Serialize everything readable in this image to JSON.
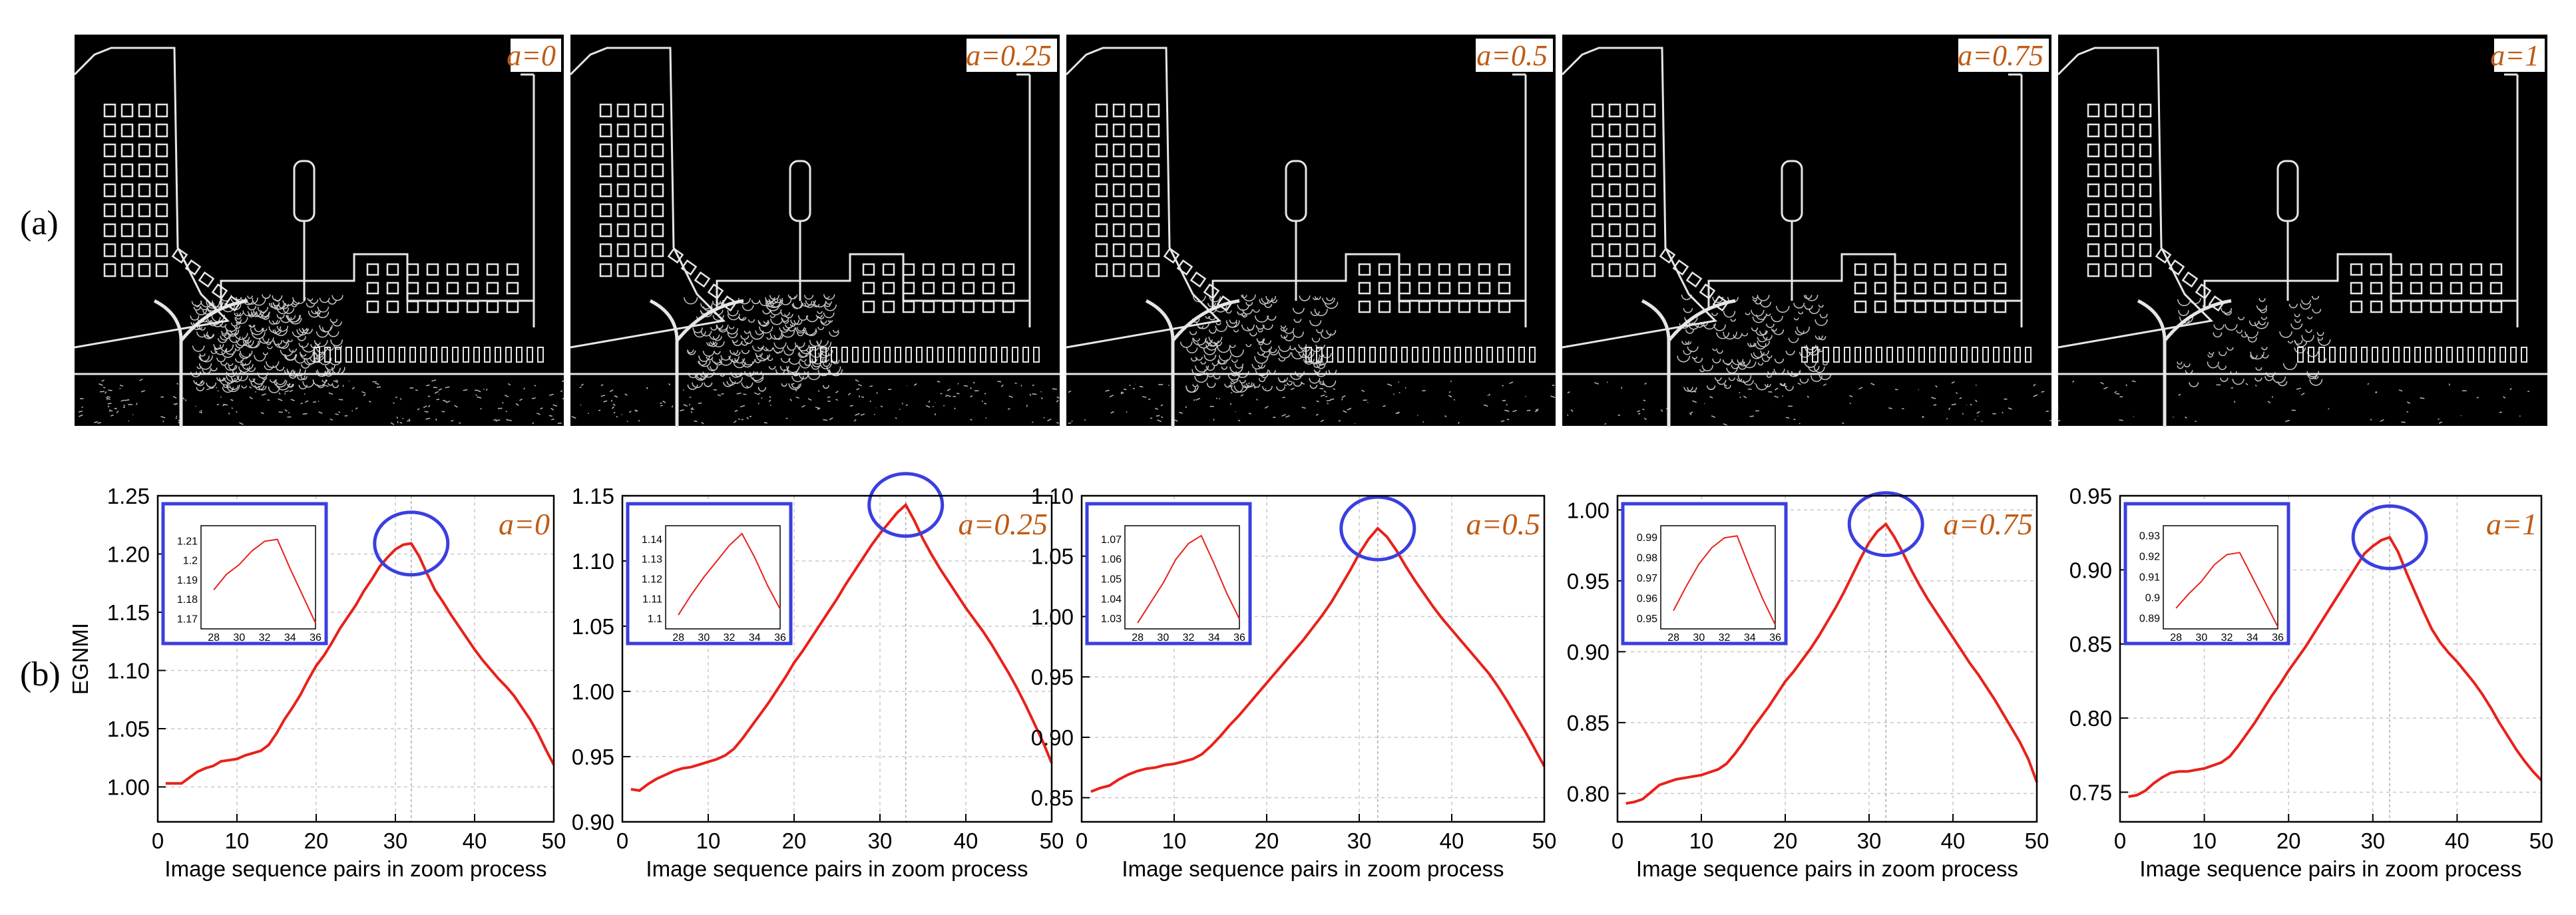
{
  "row_labels": {
    "a": "(a)",
    "b": "(b)"
  },
  "colors": {
    "curve": "#e8211b",
    "highlight": "#3a3fe0",
    "param_label": "#c05a12",
    "grid": "#c8c8c8",
    "edge_line": "#e6e6e6"
  },
  "images": [
    {
      "label": "a=0",
      "icon": "edge-map-image"
    },
    {
      "label": "a=0.25",
      "icon": "edge-map-image"
    },
    {
      "label": "a=0.5",
      "icon": "edge-map-image"
    },
    {
      "label": "a=0.75",
      "icon": "edge-map-image"
    },
    {
      "label": "a=1",
      "icon": "edge-map-image"
    }
  ],
  "chart_data": [
    {
      "type": "line",
      "param_label": "a=0",
      "xlabel": "Image sequence pairs in zoom process",
      "ylabel": "EGNMI",
      "xlim": [
        0,
        50
      ],
      "ylim": [
        0.97,
        1.25
      ],
      "x_ticks": [
        0,
        10,
        20,
        30,
        40,
        50
      ],
      "y_ticks": [
        1.0,
        1.05,
        1.1,
        1.15,
        1.2,
        1.25
      ],
      "y_tick_decimals": 2,
      "grid": true,
      "peak_x": 32,
      "series": [
        {
          "x": [
            1,
            2,
            3,
            4,
            5,
            6,
            7,
            8,
            9,
            10,
            11,
            12,
            13,
            14,
            15,
            16,
            17,
            18,
            19,
            20,
            21,
            22,
            23,
            24,
            25,
            26,
            27,
            28,
            29,
            30,
            31,
            32,
            33,
            34,
            35,
            36,
            37,
            38,
            39,
            40,
            41,
            42,
            43,
            44,
            45,
            46,
            47,
            48,
            49,
            50
          ],
          "values": [
            1.003,
            1.003,
            1.003,
            1.008,
            1.013,
            1.016,
            1.018,
            1.022,
            1.023,
            1.024,
            1.027,
            1.029,
            1.031,
            1.036,
            1.046,
            1.058,
            1.068,
            1.079,
            1.092,
            1.104,
            1.113,
            1.124,
            1.136,
            1.146,
            1.156,
            1.168,
            1.178,
            1.189,
            1.197,
            1.204,
            1.208,
            1.209,
            1.198,
            1.183,
            1.169,
            1.159,
            1.148,
            1.138,
            1.128,
            1.118,
            1.109,
            1.101,
            1.093,
            1.086,
            1.078,
            1.068,
            1.058,
            1.046,
            1.032,
            1.019
          ]
        }
      ],
      "inset": {
        "xlim": [
          27,
          36
        ],
        "ylim": [
          1.165,
          1.218
        ],
        "x_ticks": [
          28,
          30,
          32,
          34,
          36
        ],
        "y_ticks": [
          1.17,
          1.18,
          1.19,
          1.2,
          1.21
        ],
        "y_tick_labels": [
          "1.17",
          "1.18",
          "1.19",
          "1.2",
          "1.21"
        ],
        "x": [
          28,
          29,
          30,
          31,
          32,
          33,
          34,
          35,
          36
        ],
        "values": [
          1.185,
          1.193,
          1.198,
          1.205,
          1.21,
          1.211,
          1.196,
          1.182,
          1.168
        ]
      }
    },
    {
      "type": "line",
      "param_label": "a=0.25",
      "xlabel": "Image sequence pairs in zoom process",
      "ylabel": "",
      "xlim": [
        0,
        50
      ],
      "ylim": [
        0.9,
        1.15
      ],
      "x_ticks": [
        0,
        10,
        20,
        30,
        40,
        50
      ],
      "y_ticks": [
        0.9,
        0.95,
        1.0,
        1.05,
        1.1,
        1.15
      ],
      "y_tick_decimals": 2,
      "grid": true,
      "peak_x": 33,
      "series": [
        {
          "x": [
            1,
            2,
            3,
            4,
            5,
            6,
            7,
            8,
            9,
            10,
            11,
            12,
            13,
            14,
            15,
            16,
            17,
            18,
            19,
            20,
            21,
            22,
            23,
            24,
            25,
            26,
            27,
            28,
            29,
            30,
            31,
            32,
            33,
            34,
            35,
            36,
            37,
            38,
            39,
            40,
            41,
            42,
            43,
            44,
            45,
            46,
            47,
            48,
            49,
            50
          ],
          "values": [
            0.925,
            0.924,
            0.929,
            0.933,
            0.936,
            0.939,
            0.941,
            0.942,
            0.944,
            0.946,
            0.948,
            0.951,
            0.956,
            0.964,
            0.973,
            0.982,
            0.991,
            1.001,
            1.011,
            1.022,
            1.031,
            1.041,
            1.051,
            1.061,
            1.071,
            1.082,
            1.092,
            1.102,
            1.112,
            1.121,
            1.129,
            1.137,
            1.143,
            1.131,
            1.117,
            1.105,
            1.094,
            1.084,
            1.074,
            1.064,
            1.055,
            1.046,
            1.036,
            1.025,
            1.014,
            1.002,
            0.989,
            0.975,
            0.961,
            0.945
          ]
        }
      ],
      "inset": {
        "xlim": [
          27,
          36
        ],
        "ylim": [
          1.095,
          1.147
        ],
        "x_ticks": [
          28,
          30,
          32,
          34,
          36
        ],
        "y_ticks": [
          1.1,
          1.11,
          1.12,
          1.13,
          1.14
        ],
        "y_tick_labels": [
          "1.1",
          "1.11",
          "1.12",
          "1.13",
          "1.14"
        ],
        "x": [
          28,
          29,
          30,
          31,
          32,
          33,
          34,
          35,
          36
        ],
        "values": [
          1.102,
          1.112,
          1.121,
          1.129,
          1.137,
          1.143,
          1.131,
          1.117,
          1.105
        ]
      }
    },
    {
      "type": "line",
      "param_label": "a=0.5",
      "xlabel": "Image sequence pairs in zoom process",
      "ylabel": "",
      "xlim": [
        0,
        50
      ],
      "ylim": [
        0.83,
        1.1
      ],
      "x_ticks": [
        0,
        10,
        20,
        30,
        40,
        50
      ],
      "y_ticks": [
        0.85,
        0.9,
        0.95,
        1.0,
        1.05,
        1.1
      ],
      "y_tick_decimals": 2,
      "grid": true,
      "peak_x": 32,
      "series": [
        {
          "x": [
            1,
            2,
            3,
            4,
            5,
            6,
            7,
            8,
            9,
            10,
            11,
            12,
            13,
            14,
            15,
            16,
            17,
            18,
            19,
            20,
            21,
            22,
            23,
            24,
            25,
            26,
            27,
            28,
            29,
            30,
            31,
            32,
            33,
            34,
            35,
            36,
            37,
            38,
            39,
            40,
            41,
            42,
            43,
            44,
            45,
            46,
            47,
            48,
            49,
            50
          ],
          "values": [
            0.855,
            0.858,
            0.86,
            0.865,
            0.869,
            0.872,
            0.874,
            0.875,
            0.877,
            0.878,
            0.88,
            0.882,
            0.886,
            0.893,
            0.901,
            0.91,
            0.918,
            0.927,
            0.936,
            0.945,
            0.954,
            0.963,
            0.972,
            0.981,
            0.991,
            1.001,
            1.012,
            1.025,
            1.038,
            1.052,
            1.064,
            1.073,
            1.066,
            1.055,
            1.042,
            1.03,
            1.019,
            1.008,
            0.998,
            0.989,
            0.98,
            0.971,
            0.962,
            0.953,
            0.942,
            0.93,
            0.917,
            0.904,
            0.89,
            0.876
          ]
        }
      ],
      "inset": {
        "xlim": [
          27,
          36
        ],
        "ylim": [
          1.025,
          1.077
        ],
        "x_ticks": [
          28,
          30,
          32,
          34,
          36
        ],
        "y_ticks": [
          1.03,
          1.04,
          1.05,
          1.06,
          1.07
        ],
        "y_tick_labels": [
          "1.03",
          "1.04",
          "1.05",
          "1.06",
          "1.07"
        ],
        "x": [
          28,
          29,
          30,
          31,
          32,
          33,
          34,
          35,
          36
        ],
        "values": [
          1.028,
          1.038,
          1.048,
          1.06,
          1.068,
          1.072,
          1.058,
          1.043,
          1.03
        ]
      }
    },
    {
      "type": "line",
      "param_label": "a=0.75",
      "xlabel": "Image sequence pairs in zoom process",
      "ylabel": "",
      "xlim": [
        0,
        50
      ],
      "ylim": [
        0.78,
        1.01
      ],
      "x_ticks": [
        0,
        10,
        20,
        30,
        40,
        50
      ],
      "y_ticks": [
        0.8,
        0.85,
        0.9,
        0.95,
        1.0
      ],
      "y_tick_decimals": 2,
      "grid": true,
      "peak_x": 32,
      "series": [
        {
          "x": [
            1,
            2,
            3,
            4,
            5,
            6,
            7,
            8,
            9,
            10,
            11,
            12,
            13,
            14,
            15,
            16,
            17,
            18,
            19,
            20,
            21,
            22,
            23,
            24,
            25,
            26,
            27,
            28,
            29,
            30,
            31,
            32,
            33,
            34,
            35,
            36,
            37,
            38,
            39,
            40,
            41,
            42,
            43,
            44,
            45,
            46,
            47,
            48,
            49,
            50
          ],
          "values": [
            0.793,
            0.794,
            0.796,
            0.801,
            0.806,
            0.808,
            0.81,
            0.811,
            0.812,
            0.813,
            0.815,
            0.817,
            0.821,
            0.828,
            0.836,
            0.845,
            0.853,
            0.861,
            0.87,
            0.879,
            0.886,
            0.894,
            0.902,
            0.911,
            0.921,
            0.931,
            0.942,
            0.954,
            0.966,
            0.977,
            0.985,
            0.99,
            0.981,
            0.97,
            0.958,
            0.947,
            0.937,
            0.928,
            0.919,
            0.91,
            0.901,
            0.892,
            0.884,
            0.875,
            0.866,
            0.856,
            0.846,
            0.836,
            0.824,
            0.808
          ]
        }
      ],
      "inset": {
        "xlim": [
          27,
          36
        ],
        "ylim": [
          0.945,
          0.996
        ],
        "x_ticks": [
          28,
          30,
          32,
          34,
          36
        ],
        "y_ticks": [
          0.95,
          0.96,
          0.97,
          0.98,
          0.99
        ],
        "y_tick_labels": [
          "0.95",
          "0.96",
          "0.97",
          "0.98",
          "0.99"
        ],
        "x": [
          28,
          29,
          30,
          31,
          32,
          33,
          34,
          35,
          36
        ],
        "values": [
          0.954,
          0.966,
          0.977,
          0.985,
          0.99,
          0.991,
          0.975,
          0.96,
          0.947
        ]
      }
    },
    {
      "type": "line",
      "param_label": "a=1",
      "xlabel": "Image sequence pairs in zoom process",
      "ylabel": "",
      "xlim": [
        0,
        50
      ],
      "ylim": [
        0.73,
        0.95
      ],
      "x_ticks": [
        0,
        10,
        20,
        30,
        40,
        50
      ],
      "y_ticks": [
        0.75,
        0.8,
        0.85,
        0.9,
        0.95
      ],
      "y_tick_decimals": 2,
      "grid": true,
      "peak_x": 32,
      "series": [
        {
          "x": [
            1,
            2,
            3,
            4,
            5,
            6,
            7,
            8,
            9,
            10,
            11,
            12,
            13,
            14,
            15,
            16,
            17,
            18,
            19,
            20,
            21,
            22,
            23,
            24,
            25,
            26,
            27,
            28,
            29,
            30,
            31,
            32,
            33,
            34,
            35,
            36,
            37,
            38,
            39,
            40,
            41,
            42,
            43,
            44,
            45,
            46,
            47,
            48,
            49,
            50
          ],
          "values": [
            0.747,
            0.748,
            0.751,
            0.756,
            0.76,
            0.763,
            0.764,
            0.764,
            0.765,
            0.766,
            0.768,
            0.77,
            0.774,
            0.781,
            0.789,
            0.797,
            0.806,
            0.815,
            0.823,
            0.832,
            0.84,
            0.848,
            0.857,
            0.866,
            0.875,
            0.884,
            0.893,
            0.902,
            0.911,
            0.916,
            0.92,
            0.922,
            0.912,
            0.898,
            0.885,
            0.872,
            0.86,
            0.851,
            0.844,
            0.838,
            0.831,
            0.824,
            0.816,
            0.807,
            0.797,
            0.788,
            0.779,
            0.771,
            0.764,
            0.758
          ]
        }
      ],
      "inset": {
        "xlim": [
          27,
          36
        ],
        "ylim": [
          0.885,
          0.935
        ],
        "x_ticks": [
          28,
          30,
          32,
          34,
          36
        ],
        "y_ticks": [
          0.89,
          0.9,
          0.91,
          0.92,
          0.93
        ],
        "y_tick_labels": [
          "0.89",
          "0.9",
          "0.91",
          "0.92",
          "0.93"
        ],
        "x": [
          28,
          29,
          30,
          31,
          32,
          33,
          34,
          35,
          36
        ],
        "values": [
          0.895,
          0.902,
          0.908,
          0.916,
          0.921,
          0.922,
          0.91,
          0.898,
          0.886
        ]
      }
    }
  ]
}
